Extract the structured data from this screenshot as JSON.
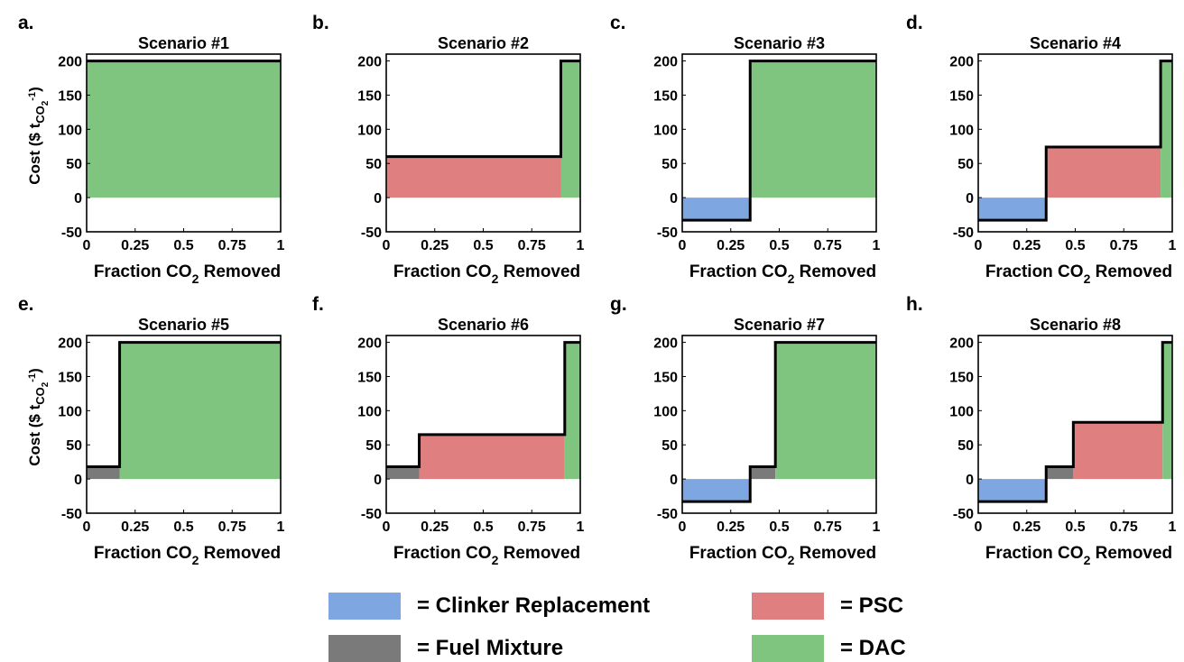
{
  "colors": {
    "clinker": "#7ea6e0",
    "fuel": "#7a7a7a",
    "psc": "#e07f7f",
    "dac": "#7fc47f",
    "outline": "#000000"
  },
  "legend": {
    "clinker": "= Clinker Replacement",
    "psc": "= PSC",
    "fuel": "= Fuel Mixture",
    "dac": "= DAC"
  },
  "chart_data": [
    {
      "type": "area",
      "panel_label": "a.",
      "title": "Scenario #1",
      "xlabel": "Fraction CO2 Removed",
      "ylabel": "Cost ($ tCO2-1)",
      "xlim": [
        0,
        1
      ],
      "ylim": [
        -50,
        210
      ],
      "xticks": [
        "0",
        "0.25",
        "0.5",
        "0.75",
        "1"
      ],
      "yticks": [
        "-50",
        "0",
        "50",
        "100",
        "150",
        "200"
      ],
      "segments": [
        {
          "tech": "dac",
          "x0": 0,
          "x1": 1,
          "y": 200
        }
      ]
    },
    {
      "type": "area",
      "panel_label": "b.",
      "title": "Scenario #2",
      "xlabel": "Fraction CO2 Removed",
      "xlim": [
        0,
        1
      ],
      "ylim": [
        -50,
        210
      ],
      "xticks": [
        "0",
        "0.25",
        "0.5",
        "0.75",
        "1"
      ],
      "yticks": [
        "-50",
        "0",
        "50",
        "100",
        "150",
        "200"
      ],
      "segments": [
        {
          "tech": "psc",
          "x0": 0,
          "x1": 0.9,
          "y": 60
        },
        {
          "tech": "dac",
          "x0": 0.9,
          "x1": 1,
          "y": 200
        }
      ]
    },
    {
      "type": "area",
      "panel_label": "c.",
      "title": "Scenario #3",
      "xlabel": "Fraction CO2 Removed",
      "xlim": [
        0,
        1
      ],
      "ylim": [
        -50,
        210
      ],
      "xticks": [
        "0",
        "0.25",
        "0.5",
        "0.75",
        "1"
      ],
      "yticks": [
        "-50",
        "0",
        "50",
        "100",
        "150",
        "200"
      ],
      "segments": [
        {
          "tech": "clinker",
          "x0": 0,
          "x1": 0.35,
          "y": -33
        },
        {
          "tech": "dac",
          "x0": 0.35,
          "x1": 1,
          "y": 200
        }
      ]
    },
    {
      "type": "area",
      "panel_label": "d.",
      "title": "Scenario #4",
      "xlabel": "Fraction CO2 Removed",
      "xlim": [
        0,
        1
      ],
      "ylim": [
        -50,
        210
      ],
      "xticks": [
        "0",
        "0.25",
        "0.5",
        "0.75",
        "1"
      ],
      "yticks": [
        "-50",
        "0",
        "50",
        "100",
        "150",
        "200"
      ],
      "segments": [
        {
          "tech": "clinker",
          "x0": 0,
          "x1": 0.35,
          "y": -33
        },
        {
          "tech": "psc",
          "x0": 0.35,
          "x1": 0.94,
          "y": 74
        },
        {
          "tech": "dac",
          "x0": 0.94,
          "x1": 1,
          "y": 200
        }
      ]
    },
    {
      "type": "area",
      "panel_label": "e.",
      "title": "Scenario #5",
      "xlabel": "Fraction CO2 Removed",
      "ylabel": "Cost ($ tCO2-1)",
      "xlim": [
        0,
        1
      ],
      "ylim": [
        -50,
        210
      ],
      "xticks": [
        "0",
        "0.25",
        "0.5",
        "0.75",
        "1"
      ],
      "yticks": [
        "-50",
        "0",
        "50",
        "100",
        "150",
        "200"
      ],
      "segments": [
        {
          "tech": "fuel",
          "x0": 0,
          "x1": 0.17,
          "y": 18
        },
        {
          "tech": "dac",
          "x0": 0.17,
          "x1": 1,
          "y": 200
        }
      ]
    },
    {
      "type": "area",
      "panel_label": "f.",
      "title": "Scenario #6",
      "xlabel": "Fraction CO2 Removed",
      "xlim": [
        0,
        1
      ],
      "ylim": [
        -50,
        210
      ],
      "xticks": [
        "0",
        "0.25",
        "0.5",
        "0.75",
        "1"
      ],
      "yticks": [
        "-50",
        "0",
        "50",
        "100",
        "150",
        "200"
      ],
      "segments": [
        {
          "tech": "fuel",
          "x0": 0,
          "x1": 0.17,
          "y": 18
        },
        {
          "tech": "psc",
          "x0": 0.17,
          "x1": 0.92,
          "y": 65
        },
        {
          "tech": "dac",
          "x0": 0.92,
          "x1": 1,
          "y": 200
        }
      ]
    },
    {
      "type": "area",
      "panel_label": "g.",
      "title": "Scenario #7",
      "xlabel": "Fraction CO2 Removed",
      "xlim": [
        0,
        1
      ],
      "ylim": [
        -50,
        210
      ],
      "xticks": [
        "0",
        "0.25",
        "0.5",
        "0.75",
        "1"
      ],
      "yticks": [
        "-50",
        "0",
        "50",
        "100",
        "150",
        "200"
      ],
      "segments": [
        {
          "tech": "clinker",
          "x0": 0,
          "x1": 0.35,
          "y": -33
        },
        {
          "tech": "fuel",
          "x0": 0.35,
          "x1": 0.48,
          "y": 18
        },
        {
          "tech": "dac",
          "x0": 0.48,
          "x1": 1,
          "y": 200
        }
      ]
    },
    {
      "type": "area",
      "panel_label": "h.",
      "title": "Scenario #8",
      "xlabel": "Fraction CO2 Removed",
      "xlim": [
        0,
        1
      ],
      "ylim": [
        -50,
        210
      ],
      "xticks": [
        "0",
        "0.25",
        "0.5",
        "0.75",
        "1"
      ],
      "yticks": [
        "-50",
        "0",
        "50",
        "100",
        "150",
        "200"
      ],
      "segments": [
        {
          "tech": "clinker",
          "x0": 0,
          "x1": 0.35,
          "y": -33
        },
        {
          "tech": "fuel",
          "x0": 0.35,
          "x1": 0.49,
          "y": 18
        },
        {
          "tech": "psc",
          "x0": 0.49,
          "x1": 0.95,
          "y": 83
        },
        {
          "tech": "dac",
          "x0": 0.95,
          "x1": 1,
          "y": 200
        }
      ]
    }
  ]
}
